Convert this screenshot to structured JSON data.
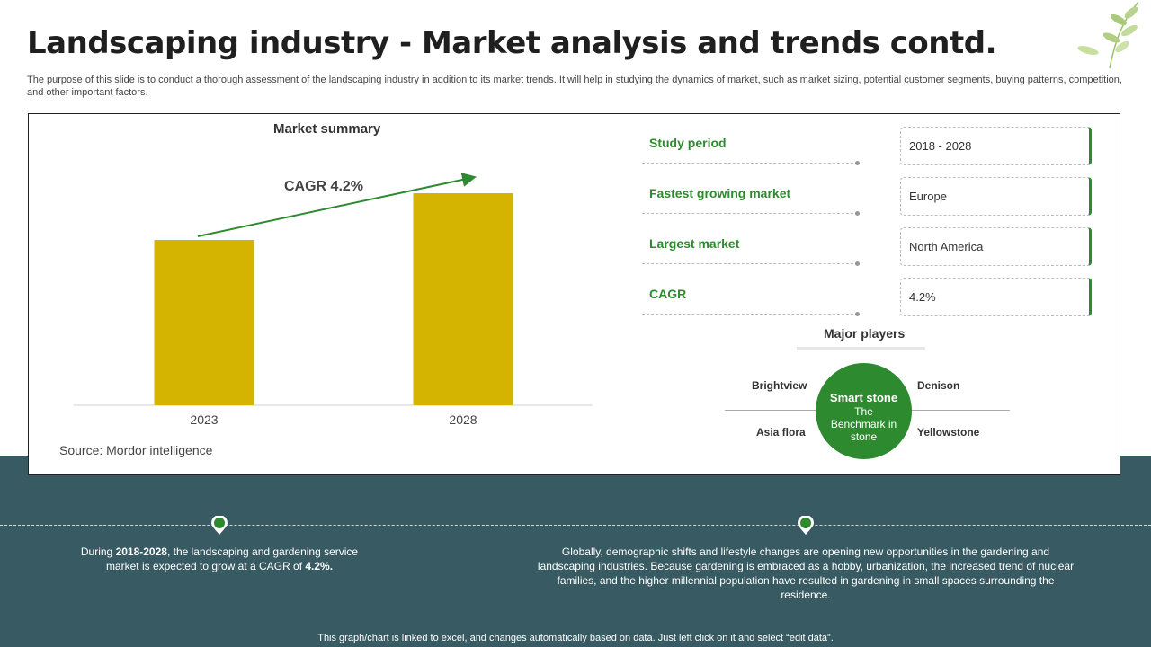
{
  "header": {
    "title": "Landscaping industry - Market analysis and trends contd.",
    "subtitle": "The purpose of this slide is to conduct a thorough assessment of the landscaping industry in addition to its market trends. It will help in studying the dynamics of market, such as market sizing, potential customer segments, buying patterns, competition, and other important factors."
  },
  "chart": {
    "title": "Market summary",
    "cagr_label": "CAGR 4.2%",
    "source": "Source: Mordor intelligence"
  },
  "chart_data": {
    "type": "bar",
    "title": "Market summary",
    "categories": [
      "2023",
      "2028"
    ],
    "values": [
      184,
      236
    ],
    "ylim": [
      0,
      236
    ],
    "xlabel": "",
    "ylabel": "",
    "grid": false,
    "annotations": [
      "CAGR 4.2%"
    ],
    "bar_color": "#d4b400"
  },
  "metrics": [
    {
      "label": "Study period",
      "value": "2018 - 2028"
    },
    {
      "label": "Fastest growing market",
      "value": "Europe"
    },
    {
      "label": "Largest market",
      "value": "North America"
    },
    {
      "label": "CAGR",
      "value": "4.2%"
    }
  ],
  "players": {
    "title": "Major players",
    "center_name": "Smart stone",
    "center_tag": "The Benchmark in stone",
    "top_left": "Brightview",
    "top_right": "Denison",
    "bottom_left": "Asia flora",
    "bottom_right": "Yellowstone"
  },
  "notes": {
    "left_pre": "During ",
    "left_bold1": "2018-2028",
    "left_mid": ", the landscaping and gardening service market is expected to grow at a CAGR of ",
    "left_bold2": "4.2%.",
    "right": "Globally, demographic shifts and lifestyle changes are opening new opportunities in the gardening and landscaping industries. Because gardening is embraced as a hobby, urbanization, the increased trend of nuclear families, and the higher millennial population have resulted in gardening in small spaces surrounding the residence."
  },
  "footer": "This graph/chart is linked to excel, and changes automatically based on data. Just left click on it and select “edit data”.",
  "colors": {
    "accent_green": "#2e8a2f",
    "bar_gold": "#d4b400",
    "band_teal": "#375a63"
  }
}
